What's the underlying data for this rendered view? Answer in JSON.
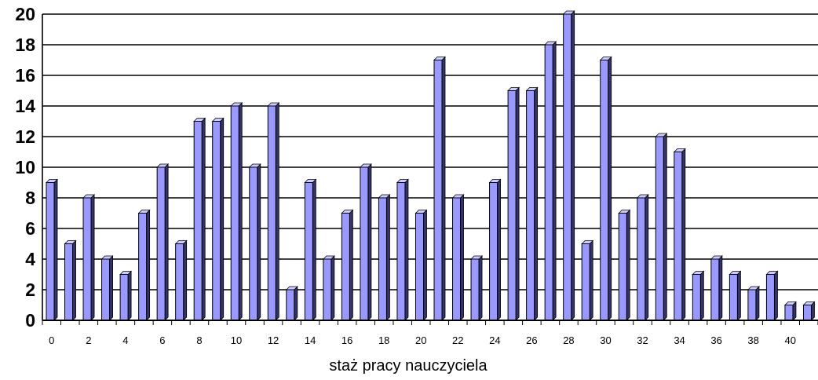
{
  "chart_data": {
    "type": "bar",
    "title": "",
    "xlabel": "staż pracy nauczyciela",
    "ylabel": "",
    "ylim": [
      0,
      20
    ],
    "yticks": [
      0,
      2,
      4,
      6,
      8,
      10,
      12,
      14,
      16,
      18,
      20
    ],
    "xtick_labels": [
      0,
      2,
      4,
      6,
      8,
      10,
      12,
      14,
      16,
      18,
      20,
      22,
      24,
      26,
      28,
      30,
      32,
      34,
      36,
      38,
      40
    ],
    "grid": "horizontal",
    "legend": "none",
    "bar_style": "3d",
    "categories": [
      0,
      1,
      2,
      3,
      4,
      5,
      6,
      7,
      8,
      9,
      10,
      11,
      12,
      13,
      14,
      15,
      16,
      17,
      18,
      19,
      20,
      21,
      22,
      23,
      24,
      25,
      26,
      27,
      28,
      29,
      30,
      31,
      32,
      33,
      34,
      35,
      36,
      37,
      38,
      39,
      40,
      41
    ],
    "values": [
      9,
      5,
      8,
      4,
      3,
      7,
      10,
      5,
      13,
      13,
      14,
      10,
      14,
      2,
      9,
      4,
      7,
      10,
      8,
      9,
      7,
      17,
      8,
      4,
      9,
      15,
      15,
      18,
      20,
      5,
      17,
      7,
      8,
      12,
      11,
      3,
      4,
      3,
      2,
      3,
      1,
      1
    ]
  },
  "colors": {
    "bar_front": "#9999ff",
    "bar_side": "#333366",
    "bar_top": "#ccccff",
    "grid": "#000000",
    "axis": "#000000",
    "text": "#000000"
  }
}
